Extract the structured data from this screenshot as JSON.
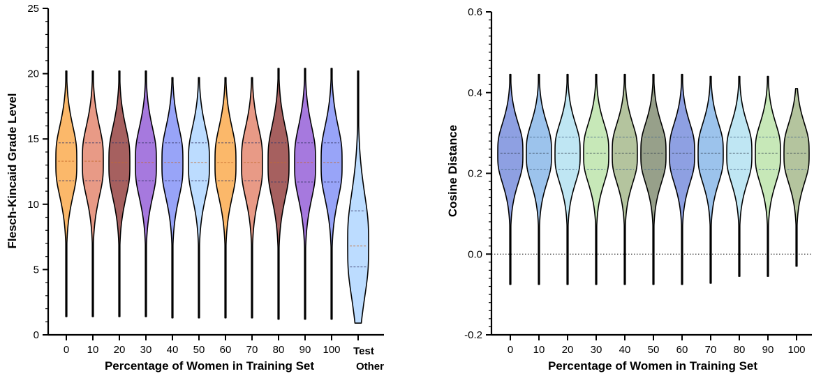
{
  "chart_data": [
    {
      "type": "violin",
      "xlabel": "Percentage of Women in Training Set",
      "ylabel": "Flesch-Kincaid Grade Level",
      "ylim": [
        0,
        25
      ],
      "yticks": [
        0,
        5,
        10,
        15,
        20,
        25
      ],
      "categories": [
        "0",
        "10",
        "20",
        "30",
        "40",
        "50",
        "60",
        "70",
        "80",
        "90",
        "100"
      ],
      "extra_category": [
        "Test",
        "Other"
      ],
      "series": [
        {
          "category": "0",
          "color": "#fbb86a",
          "min": 1.4,
          "max": 20.2,
          "q1": 11.8,
          "median": 13.3,
          "q3": 14.7
        },
        {
          "category": "10",
          "color": "#e89a86",
          "min": 1.4,
          "max": 20.2,
          "q1": 11.8,
          "median": 13.3,
          "q3": 14.7
        },
        {
          "category": "20",
          "color": "#a6605f",
          "min": 1.4,
          "max": 20.2,
          "q1": 11.8,
          "median": 13.2,
          "q3": 14.7
        },
        {
          "category": "30",
          "color": "#a679de",
          "min": 1.4,
          "max": 20.2,
          "q1": 11.8,
          "median": 13.2,
          "q3": 14.7
        },
        {
          "category": "40",
          "color": "#98a4f8",
          "min": 1.3,
          "max": 19.7,
          "q1": 11.8,
          "median": 13.2,
          "q3": 14.7
        },
        {
          "category": "50",
          "color": "#bcdcff",
          "min": 1.3,
          "max": 19.7,
          "q1": 11.8,
          "median": 13.2,
          "q3": 14.7
        },
        {
          "category": "60",
          "color": "#fbb86a",
          "min": 1.3,
          "max": 19.7,
          "q1": 11.8,
          "median": 13.2,
          "q3": 14.7
        },
        {
          "category": "70",
          "color": "#e89a86",
          "min": 1.3,
          "max": 19.7,
          "q1": 11.8,
          "median": 13.2,
          "q3": 14.7
        },
        {
          "category": "80",
          "color": "#a6605f",
          "min": 1.2,
          "max": 20.4,
          "q1": 11.7,
          "median": 13.2,
          "q3": 14.7
        },
        {
          "category": "90",
          "color": "#a679de",
          "min": 1.2,
          "max": 20.4,
          "q1": 11.7,
          "median": 13.2,
          "q3": 14.7
        },
        {
          "category": "100",
          "color": "#98a4f8",
          "min": 1.2,
          "max": 20.4,
          "q1": 11.7,
          "median": 13.2,
          "q3": 14.7
        },
        {
          "category": "Test Other",
          "color": "#bcdcff",
          "min": 0.9,
          "max": 20.2,
          "q1": 5.2,
          "median": 6.8,
          "q3": 9.5
        }
      ]
    },
    {
      "type": "violin",
      "xlabel": "Percentage of Women in Training Set",
      "ylabel": "Cosine Distance",
      "ylim": [
        -0.2,
        0.6
      ],
      "yticks": [
        -0.2,
        0.0,
        0.2,
        0.4,
        0.6
      ],
      "ytick_labels": [
        "-0.2",
        "0.0",
        "0.2",
        "0.4",
        "0.6"
      ],
      "reference_line": 0.0,
      "categories": [
        "0",
        "10",
        "20",
        "30",
        "40",
        "50",
        "60",
        "70",
        "80",
        "90",
        "100"
      ],
      "series": [
        {
          "category": "0",
          "color": "#8ea0e2",
          "min": -0.075,
          "max": 0.445,
          "q1": 0.21,
          "median": 0.25,
          "q3": 0.29
        },
        {
          "category": "10",
          "color": "#9cc3ec",
          "min": -0.075,
          "max": 0.445,
          "q1": 0.21,
          "median": 0.25,
          "q3": 0.29
        },
        {
          "category": "20",
          "color": "#bfe6f3",
          "min": -0.075,
          "max": 0.445,
          "q1": 0.21,
          "median": 0.25,
          "q3": 0.29
        },
        {
          "category": "30",
          "color": "#c7e8b8",
          "min": -0.075,
          "max": 0.445,
          "q1": 0.21,
          "median": 0.25,
          "q3": 0.29
        },
        {
          "category": "40",
          "color": "#b4c49e",
          "min": -0.075,
          "max": 0.445,
          "q1": 0.21,
          "median": 0.25,
          "q3": 0.29
        },
        {
          "category": "50",
          "color": "#97a08a",
          "min": -0.075,
          "max": 0.445,
          "q1": 0.21,
          "median": 0.25,
          "q3": 0.29
        },
        {
          "category": "60",
          "color": "#8ea0e2",
          "min": -0.075,
          "max": 0.445,
          "q1": 0.21,
          "median": 0.25,
          "q3": 0.29
        },
        {
          "category": "70",
          "color": "#9cc3ec",
          "min": -0.072,
          "max": 0.44,
          "q1": 0.21,
          "median": 0.25,
          "q3": 0.29
        },
        {
          "category": "80",
          "color": "#bfe6f3",
          "min": -0.055,
          "max": 0.44,
          "q1": 0.21,
          "median": 0.25,
          "q3": 0.29
        },
        {
          "category": "90",
          "color": "#c7e8b8",
          "min": -0.055,
          "max": 0.44,
          "q1": 0.21,
          "median": 0.25,
          "q3": 0.29
        },
        {
          "category": "100",
          "color": "#b4c49e",
          "min": -0.03,
          "max": 0.41,
          "q1": 0.21,
          "median": 0.25,
          "q3": 0.29
        }
      ]
    }
  ]
}
